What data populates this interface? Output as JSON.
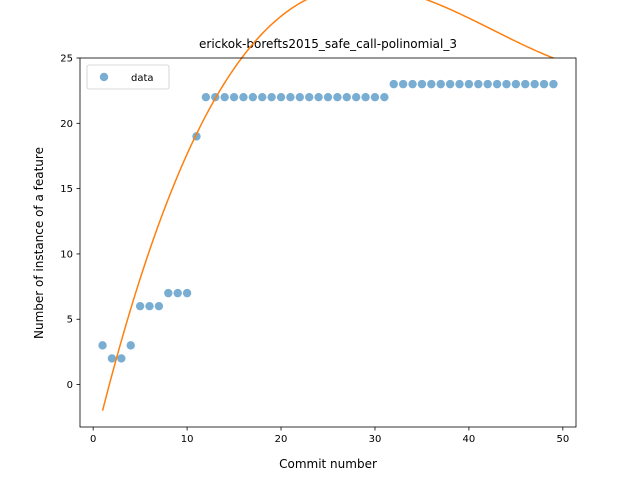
{
  "chart_data": {
    "type": "scatter",
    "title": "erickok-borefts2015_safe_call-polinomial_3",
    "xlabel": "Commit number",
    "ylabel": "Number of instance of a feature",
    "xlim": [
      -1.4,
      51.4
    ],
    "ylim": [
      -3.25,
      25
    ],
    "xticks": [
      0,
      10,
      20,
      30,
      40,
      50
    ],
    "yticks": [
      0,
      5,
      10,
      15,
      20,
      25
    ],
    "grid": false,
    "legend_position": "upper-left",
    "series": [
      {
        "name": "data",
        "kind": "scatter",
        "color": "#1f77b4",
        "x": [
          1,
          2,
          3,
          4,
          5,
          6,
          7,
          8,
          9,
          10,
          11,
          12,
          13,
          14,
          15,
          16,
          17,
          18,
          19,
          20,
          21,
          22,
          23,
          24,
          25,
          26,
          27,
          28,
          29,
          30,
          31,
          32,
          33,
          34,
          35,
          36,
          37,
          38,
          39,
          40,
          41,
          42,
          43,
          44,
          45,
          46,
          47,
          48,
          49
        ],
        "y": [
          3,
          2,
          2,
          3,
          6,
          6,
          6,
          7,
          7,
          7,
          19,
          22,
          22,
          22,
          22,
          22,
          22,
          22,
          22,
          22,
          22,
          22,
          22,
          22,
          22,
          22,
          22,
          22,
          22,
          22,
          22,
          23,
          23,
          23,
          23,
          23,
          23,
          23,
          23,
          23,
          23,
          23,
          23,
          23,
          23,
          23,
          23,
          23,
          23
        ]
      },
      {
        "kind": "fit-line",
        "color": "#ff7f0e",
        "polynomial_degree": 3,
        "coefficients": [
          -4.904,
          2.9775,
          -0.0784,
          0.000614
        ],
        "x_range": [
          1,
          49
        ]
      }
    ]
  }
}
